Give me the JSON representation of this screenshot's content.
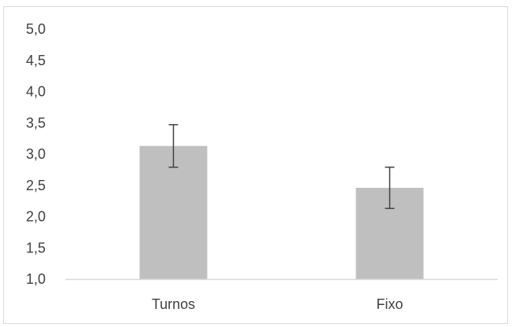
{
  "chart_data": {
    "type": "bar",
    "title": "",
    "xlabel": "",
    "ylabel": "",
    "categories": [
      "Turnos",
      "Fixo"
    ],
    "values": [
      3.13,
      2.46
    ],
    "error_bars": [
      {
        "low": 2.79,
        "high": 3.47
      },
      {
        "low": 2.13,
        "high": 2.79
      }
    ],
    "ylim": [
      1.0,
      5.0
    ],
    "y_ticks": [
      "1,0",
      "1,5",
      "2,0",
      "2,5",
      "3,0",
      "3,5",
      "4,0",
      "4,5",
      "5,0"
    ],
    "grid": false,
    "legend": "none",
    "colors": {
      "bar": "#bfbfbf",
      "error_bar": "#404040",
      "axis": "#d9d9d9",
      "text": "#404040"
    }
  }
}
